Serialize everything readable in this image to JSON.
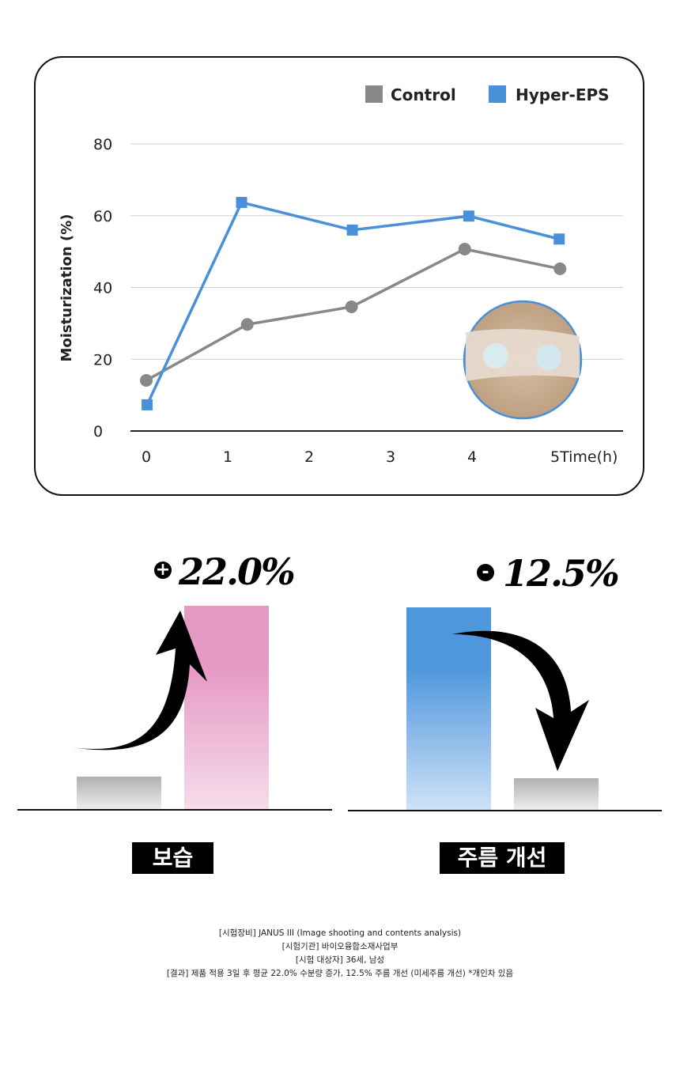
{
  "chart_data": {
    "type": "line",
    "ylabel": "Moisturization (%)",
    "xlabel": "Time(h)",
    "ylim": [
      0,
      80
    ],
    "yticks": [
      "0",
      "20",
      "40",
      "60",
      "80"
    ],
    "xticks": [
      "0",
      "1",
      "2",
      "3",
      "4",
      "5"
    ],
    "grid": true,
    "legend_position": "top-right",
    "series": [
      {
        "name": "Control",
        "color": "#888888",
        "marker": "circle",
        "x": [
          0,
          1.24,
          2.52,
          3.91,
          5.08
        ],
        "y": [
          14.1,
          29.7,
          34.6,
          50.7,
          45.2
        ]
      },
      {
        "name": "Hyper-EPS",
        "color": "#4a90d9",
        "marker": "square",
        "x": [
          0.01,
          1.17,
          2.53,
          3.96,
          5.07
        ],
        "y": [
          7.3,
          63.7,
          56.0,
          59.9,
          53.5
        ]
      }
    ]
  },
  "comparison": {
    "moisture": {
      "change": "22.0%",
      "sign": "+",
      "label": "보습",
      "color": "#e59ac6"
    },
    "wrinkle": {
      "change": "12.5%",
      "sign": "-",
      "label": "주름 개선",
      "color": "#4f97dd"
    }
  },
  "footnotes": [
    "[시험장비] JANUS III (Image shooting and contents analysis)",
    "[시험기관] 바이오융합소재사업부",
    "[시험 대상자] 36세, 남성",
    "[결과] 제품 적용 3일 후 평균 22.0% 수분량 증가, 12.5% 주름 개선 (미세주름 개선) *개인차 있음"
  ]
}
